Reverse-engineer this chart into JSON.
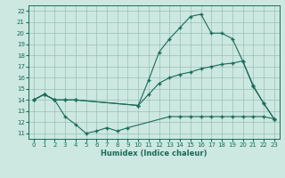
{
  "xlabel": "Humidex (Indice chaleur)",
  "bg_color": "#cce8e0",
  "grid_color": "#9abfb8",
  "line_color": "#1a6b5a",
  "xlim": [
    -0.5,
    23.5
  ],
  "ylim": [
    10.5,
    22.5
  ],
  "xticks": [
    0,
    1,
    2,
    3,
    4,
    5,
    6,
    7,
    8,
    9,
    10,
    11,
    12,
    13,
    14,
    15,
    16,
    17,
    18,
    19,
    20,
    21,
    22,
    23
  ],
  "yticks": [
    11,
    12,
    13,
    14,
    15,
    16,
    17,
    18,
    19,
    20,
    21,
    22
  ],
  "line1_x": [
    0,
    1,
    2,
    3,
    4,
    10,
    11,
    12,
    13,
    14,
    15,
    16,
    17,
    18,
    19,
    20,
    21,
    22,
    23
  ],
  "line1_y": [
    14.0,
    14.5,
    14.0,
    14.0,
    14.0,
    13.5,
    15.8,
    18.3,
    19.5,
    20.5,
    21.5,
    21.7,
    20.0,
    20.0,
    19.5,
    17.5,
    15.2,
    13.7,
    12.3
  ],
  "line2_x": [
    0,
    1,
    2,
    3,
    4,
    10,
    11,
    12,
    13,
    14,
    15,
    16,
    17,
    18,
    19,
    20,
    21,
    22,
    23
  ],
  "line2_y": [
    14.0,
    14.5,
    14.0,
    14.0,
    14.0,
    13.5,
    14.5,
    15.5,
    16.0,
    16.3,
    16.5,
    16.8,
    17.0,
    17.2,
    17.3,
    17.5,
    15.3,
    13.7,
    12.3
  ],
  "line3_x": [
    0,
    1,
    2,
    3,
    4,
    5,
    6,
    7,
    8,
    9,
    13,
    14,
    15,
    16,
    17,
    18,
    19,
    20,
    21,
    22,
    23
  ],
  "line3_y": [
    14.0,
    14.5,
    14.0,
    12.5,
    11.8,
    11.0,
    11.2,
    11.5,
    11.2,
    11.5,
    12.5,
    12.5,
    12.5,
    12.5,
    12.5,
    12.5,
    12.5,
    12.5,
    12.5,
    12.5,
    12.3
  ],
  "figw": 3.2,
  "figh": 2.0,
  "dpi": 100
}
